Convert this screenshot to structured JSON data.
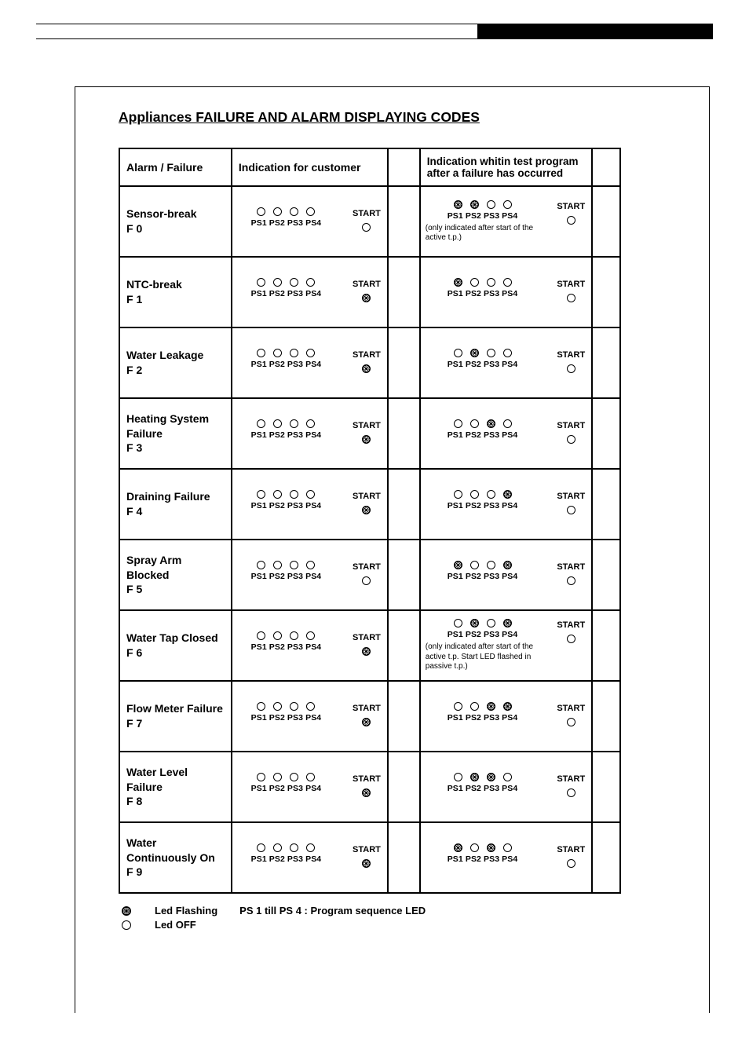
{
  "title": "Appliances FAILURE AND ALARM DISPLAYING CODES",
  "headers": {
    "alarm": "Alarm / Failure",
    "customer": "Indication for customer",
    "test": "Indication whitin test program after a failure has occurred"
  },
  "led_labels": "PS1 PS2 PS3 PS4",
  "start_label": "START",
  "legend": {
    "flash": "Led Flashing",
    "off": "Led OFF",
    "ps": "PS 1 till PS 4 : Program sequence LED"
  },
  "rows": [
    {
      "name": "Sensor-break\nF 0",
      "cust": {
        "leds": [
          "off",
          "off",
          "off",
          "off"
        ],
        "start": "off"
      },
      "test": {
        "leds": [
          "flash",
          "flash",
          "off",
          "off"
        ],
        "start": "off",
        "note": "(only indicated after start of the active t.p.)"
      }
    },
    {
      "name": "NTC-break\nF 1",
      "cust": {
        "leds": [
          "off",
          "off",
          "off",
          "off"
        ],
        "start": "flash"
      },
      "test": {
        "leds": [
          "flash",
          "off",
          "off",
          "off"
        ],
        "start": "off"
      }
    },
    {
      "name": "Water Leakage\nF 2",
      "cust": {
        "leds": [
          "off",
          "off",
          "off",
          "off"
        ],
        "start": "flash"
      },
      "test": {
        "leds": [
          "off",
          "flash",
          "off",
          "off"
        ],
        "start": "off"
      }
    },
    {
      "name": "Heating System Failure\nF 3",
      "cust": {
        "leds": [
          "off",
          "off",
          "off",
          "off"
        ],
        "start": "flash"
      },
      "test": {
        "leds": [
          "off",
          "off",
          "flash",
          "off"
        ],
        "start": "off"
      }
    },
    {
      "name": "Draining Failure\nF 4",
      "cust": {
        "leds": [
          "off",
          "off",
          "off",
          "off"
        ],
        "start": "flash"
      },
      "test": {
        "leds": [
          "off",
          "off",
          "off",
          "flash"
        ],
        "start": "off"
      }
    },
    {
      "name": "Spray Arm Blocked\nF 5",
      "cust": {
        "leds": [
          "off",
          "off",
          "off",
          "off"
        ],
        "start": "off"
      },
      "test": {
        "leds": [
          "flash",
          "off",
          "off",
          "flash"
        ],
        "start": "off"
      }
    },
    {
      "name": "Water Tap Closed\nF 6",
      "cust": {
        "leds": [
          "off",
          "off",
          "off",
          "off"
        ],
        "start": "flash"
      },
      "test": {
        "leds": [
          "off",
          "flash",
          "off",
          "flash"
        ],
        "start": "off",
        "note": "(only indicated after start of the active t.p. Start LED flashed in passive t.p.)"
      }
    },
    {
      "name": "Flow Meter Failure\nF 7",
      "cust": {
        "leds": [
          "off",
          "off",
          "off",
          "off"
        ],
        "start": "flash"
      },
      "test": {
        "leds": [
          "off",
          "off",
          "flash",
          "flash"
        ],
        "start": "off"
      }
    },
    {
      "name": "Water Level Failure\nF 8",
      "cust": {
        "leds": [
          "off",
          "off",
          "off",
          "off"
        ],
        "start": "flash"
      },
      "test": {
        "leds": [
          "off",
          "flash",
          "flash",
          "off"
        ],
        "start": "off"
      }
    },
    {
      "name": "Water Continuously On\nF 9",
      "cust": {
        "leds": [
          "off",
          "off",
          "off",
          "off"
        ],
        "start": "flash"
      },
      "test": {
        "leds": [
          "flash",
          "off",
          "flash",
          "off"
        ],
        "start": "off"
      }
    }
  ]
}
